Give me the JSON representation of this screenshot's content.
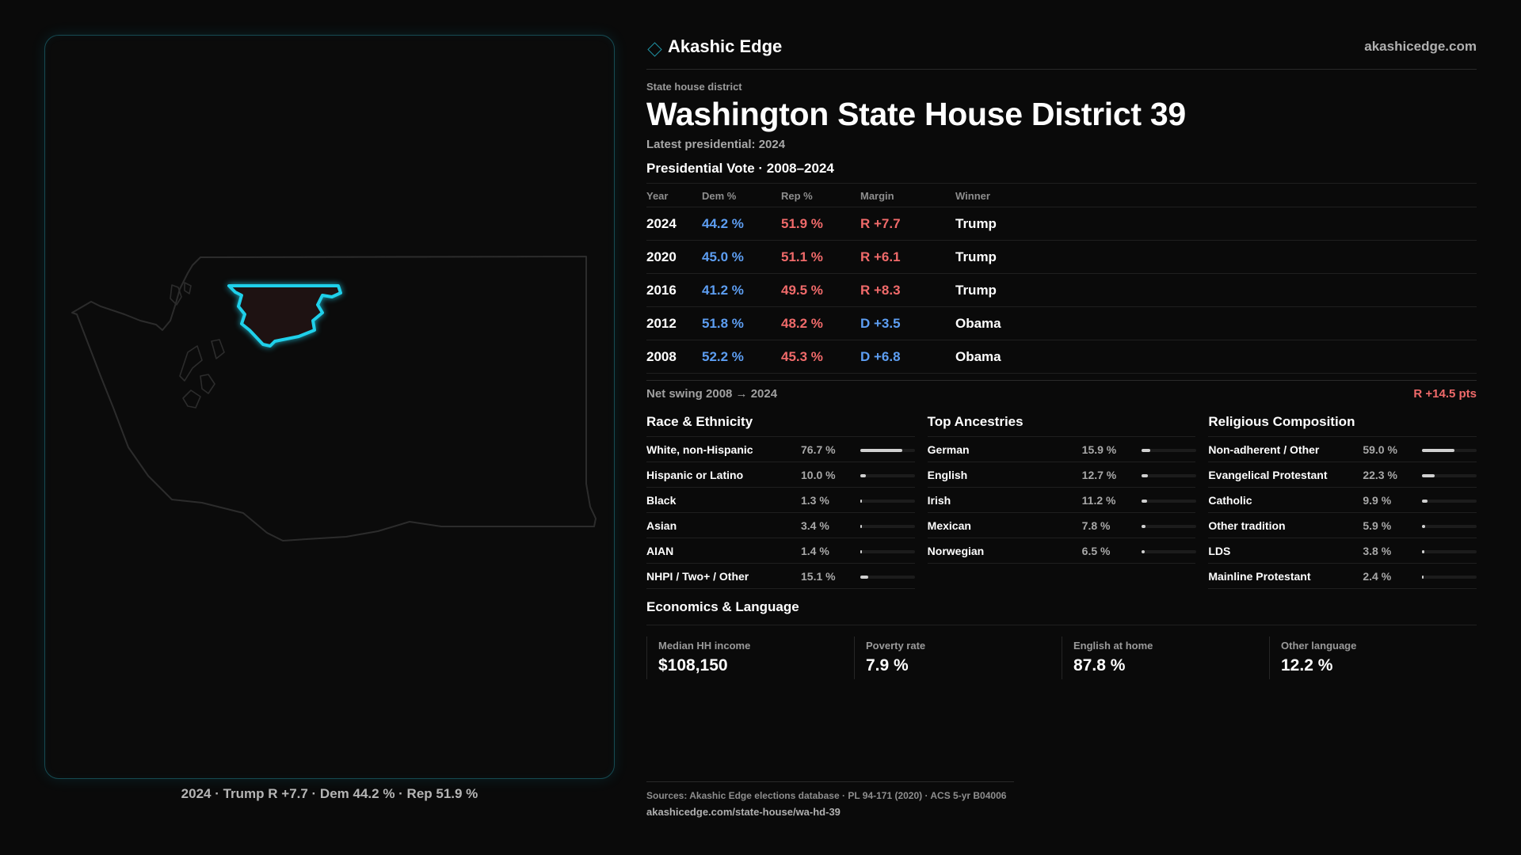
{
  "brand": {
    "name": "Akashic Edge",
    "site": "akashicedge.com",
    "logo_icon": "diamond-outline-icon",
    "accent": "#1f8fa0"
  },
  "header": {
    "kicker": "State house district",
    "title": "Washington State House District 39",
    "latest": "Latest presidential: 2024"
  },
  "presidential": {
    "title": "Presidential Vote · 2008–2024",
    "columns": [
      "Year",
      "Dem %",
      "Rep %",
      "Margin",
      "Winner"
    ],
    "rows": [
      {
        "year": "2024",
        "dem": "44.2 %",
        "rep": "51.9 %",
        "margin": "R +7.7",
        "party": "R",
        "winner": "Trump"
      },
      {
        "year": "2020",
        "dem": "45.0 %",
        "rep": "51.1 %",
        "margin": "R +6.1",
        "party": "R",
        "winner": "Trump"
      },
      {
        "year": "2016",
        "dem": "41.2 %",
        "rep": "49.5 %",
        "margin": "R +8.3",
        "party": "R",
        "winner": "Trump"
      },
      {
        "year": "2012",
        "dem": "51.8 %",
        "rep": "48.2 %",
        "margin": "D +3.5",
        "party": "D",
        "winner": "Obama"
      },
      {
        "year": "2008",
        "dem": "52.2 %",
        "rep": "45.3 %",
        "margin": "D +6.8",
        "party": "D",
        "winner": "Obama"
      }
    ],
    "swing_label": "Net swing 2008 → 2024",
    "swing_value": "R +14.5 pts",
    "colors": {
      "dem": "#5d9ef2",
      "rep": "#f06a6a"
    }
  },
  "race": {
    "title": "Race & Ethnicity",
    "items": [
      {
        "label": "White, non-Hispanic",
        "pct": "76.7 %",
        "value": 76.7
      },
      {
        "label": "Hispanic or Latino",
        "pct": "10.0 %",
        "value": 10.0
      },
      {
        "label": "Black",
        "pct": "1.3 %",
        "value": 1.3
      },
      {
        "label": "Asian",
        "pct": "3.4 %",
        "value": 3.4
      },
      {
        "label": "AIAN",
        "pct": "1.4 %",
        "value": 1.4
      },
      {
        "label": "NHPI / Two+ / Other",
        "pct": "15.1 %",
        "value": 15.1
      }
    ]
  },
  "ancestry": {
    "title": "Top Ancestries",
    "items": [
      {
        "label": "German",
        "pct": "15.9 %",
        "value": 15.9
      },
      {
        "label": "English",
        "pct": "12.7 %",
        "value": 12.7
      },
      {
        "label": "Irish",
        "pct": "11.2 %",
        "value": 11.2
      },
      {
        "label": "Mexican",
        "pct": "7.8 %",
        "value": 7.8
      },
      {
        "label": "Norwegian",
        "pct": "6.5 %",
        "value": 6.5
      }
    ]
  },
  "religion": {
    "title": "Religious Composition",
    "items": [
      {
        "label": "Non-adherent / Other",
        "pct": "59.0 %",
        "value": 59.0
      },
      {
        "label": "Evangelical Protestant",
        "pct": "22.3 %",
        "value": 22.3
      },
      {
        "label": "Catholic",
        "pct": "9.9 %",
        "value": 9.9
      },
      {
        "label": "Other tradition",
        "pct": "5.9 %",
        "value": 5.9
      },
      {
        "label": "LDS",
        "pct": "3.8 %",
        "value": 3.8
      },
      {
        "label": "Mainline Protestant",
        "pct": "2.4 %",
        "value": 2.4
      }
    ]
  },
  "economics": {
    "title": "Economics & Language",
    "cells": [
      {
        "key": "Median HH income",
        "value": "$108,150"
      },
      {
        "key": "Poverty rate",
        "value": "7.9 %"
      },
      {
        "key": "English at home",
        "value": "87.8 %"
      },
      {
        "key": "Other language",
        "value": "12.2 %"
      }
    ]
  },
  "map": {
    "caption": "2024 · Trump R +7.7 · Dem 44.2 % · Rep 51.9 %",
    "highlight_color": "#1fd0ea",
    "district_fill": "#1e1212"
  },
  "sources": {
    "line1": "Sources: Akashic Edge elections database · PL 94-171 (2020) · ACS 5-yr B04006",
    "line2": "akashicedge.com/state-house/wa-hd-39"
  }
}
